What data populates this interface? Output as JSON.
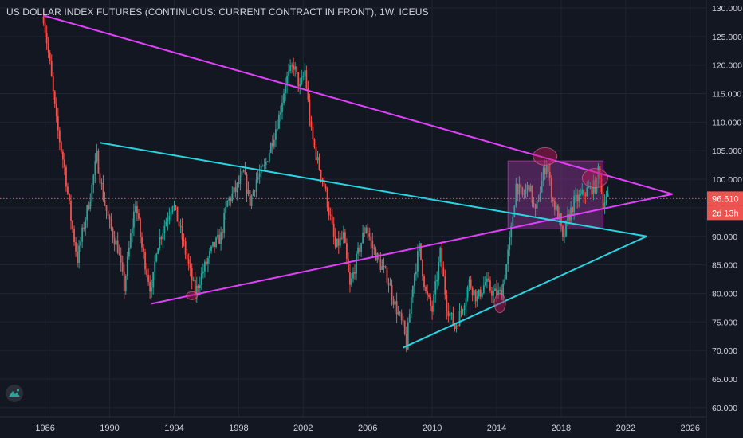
{
  "header": {
    "title": "US DOLLAR INDEX FUTURES (CONTINUOUS: CURRENT CONTRACT IN FRONT), 1W, ICEUS"
  },
  "colors": {
    "background": "#131722",
    "grid": "#1f2433",
    "axis_text": "#d1d4dc",
    "up_candle": "#26a69a",
    "down_candle": "#ef5350",
    "magenta_line": "#e040fb",
    "cyan_line": "#26d6e0",
    "price_badge": "#ef5350",
    "highlight_box": "#b03bb5"
  },
  "chart_data": {
    "type": "candlestick",
    "x_axis": {
      "min": 1983.2,
      "max": 2027.0,
      "ticks": [
        1986,
        1990,
        1994,
        1998,
        2002,
        2006,
        2010,
        2014,
        2018,
        2022,
        2026
      ]
    },
    "y_axis": {
      "min": 58.3,
      "max": 131.4,
      "ticks": [
        "60.000",
        "65.000",
        "70.000",
        "75.000",
        "80.000",
        "85.000",
        "90.000",
        "95.000",
        "100.000",
        "105.000",
        "110.000",
        "115.000",
        "120.000",
        "125.000",
        "130.000"
      ]
    },
    "price_path": [
      [
        1985.9,
        128.5
      ],
      [
        1986.3,
        120
      ],
      [
        1986.7,
        110
      ],
      [
        1987.2,
        102
      ],
      [
        1987.6,
        93
      ],
      [
        1988.0,
        86
      ],
      [
        1988.4,
        92
      ],
      [
        1988.8,
        97
      ],
      [
        1989.2,
        104
      ],
      [
        1989.6,
        97
      ],
      [
        1990.0,
        92
      ],
      [
        1990.5,
        88
      ],
      [
        1990.9,
        81
      ],
      [
        1991.3,
        90
      ],
      [
        1991.6,
        96
      ],
      [
        1992.0,
        88
      ],
      [
        1992.6,
        80
      ],
      [
        1992.9,
        88
      ],
      [
        1993.4,
        92
      ],
      [
        1993.9,
        96
      ],
      [
        1994.3,
        92
      ],
      [
        1994.8,
        86
      ],
      [
        1995.3,
        80
      ],
      [
        1995.8,
        84
      ],
      [
        1996.4,
        88
      ],
      [
        1996.9,
        90
      ],
      [
        1997.3,
        96
      ],
      [
        1997.8,
        98
      ],
      [
        1998.3,
        101
      ],
      [
        1998.7,
        96
      ],
      [
        1999.1,
        100
      ],
      [
        1999.6,
        102
      ],
      [
        2000.0,
        106
      ],
      [
        2000.5,
        111
      ],
      [
        2000.9,
        117
      ],
      [
        2001.4,
        120
      ],
      [
        2001.8,
        116
      ],
      [
        2002.1,
        119
      ],
      [
        2002.5,
        108
      ],
      [
        2002.9,
        103
      ],
      [
        2003.3,
        99
      ],
      [
        2003.7,
        93
      ],
      [
        2004.0,
        88
      ],
      [
        2004.5,
        90
      ],
      [
        2004.9,
        81
      ],
      [
        2005.4,
        87
      ],
      [
        2005.9,
        92
      ],
      [
        2006.3,
        88
      ],
      [
        2006.8,
        85
      ],
      [
        2007.2,
        83
      ],
      [
        2007.7,
        78
      ],
      [
        2008.2,
        74
      ],
      [
        2008.4,
        71
      ],
      [
        2008.8,
        82
      ],
      [
        2009.2,
        88
      ],
      [
        2009.6,
        80
      ],
      [
        2010.0,
        77
      ],
      [
        2010.5,
        87
      ],
      [
        2010.9,
        78
      ],
      [
        2011.4,
        74
      ],
      [
        2011.8,
        77
      ],
      [
        2012.3,
        82
      ],
      [
        2012.8,
        79
      ],
      [
        2013.3,
        82
      ],
      [
        2013.8,
        80
      ],
      [
        2014.3,
        80
      ],
      [
        2014.6,
        85
      ],
      [
        2014.9,
        91
      ],
      [
        2015.2,
        99
      ],
      [
        2015.6,
        97
      ],
      [
        2016.0,
        99
      ],
      [
        2016.4,
        94
      ],
      [
        2016.9,
        101
      ],
      [
        2017.1,
        103
      ],
      [
        2017.5,
        96
      ],
      [
        2017.9,
        93
      ],
      [
        2018.1,
        89
      ],
      [
        2018.4,
        93
      ],
      [
        2018.8,
        96
      ],
      [
        2019.2,
        97
      ],
      [
        2019.6,
        98
      ],
      [
        2020.2,
        99
      ],
      [
        2020.3,
        102
      ],
      [
        2020.6,
        96
      ],
      [
        2020.9,
        96.6
      ]
    ],
    "last_price": {
      "value": 96.61,
      "label": "96.610",
      "countdown": "2d 13h"
    },
    "trendlines": [
      {
        "color": "magenta",
        "x1": 1985.9,
        "y1": 128.7,
        "x2": 2024.9,
        "y2": 97.4
      },
      {
        "color": "magenta",
        "x1": 1992.6,
        "y1": 78.2,
        "x2": 2024.9,
        "y2": 97.4
      },
      {
        "color": "cyan",
        "x1": 1989.4,
        "y1": 106.4,
        "x2": 2023.3,
        "y2": 90.0
      },
      {
        "color": "cyan",
        "x1": 2008.2,
        "y1": 70.5,
        "x2": 2023.3,
        "y2": 90.0
      }
    ],
    "highlight_box": {
      "x1": 2014.7,
      "x2": 2020.6,
      "y1": 91.3,
      "y2": 103.2
    },
    "ellipse_markers": [
      {
        "x": 1995.1,
        "y": 79.6
      },
      {
        "x": 2014.2,
        "y": 78.3
      },
      {
        "x": 2017.0,
        "y": 104.0
      },
      {
        "x": 2020.1,
        "y": 100.2
      }
    ]
  }
}
